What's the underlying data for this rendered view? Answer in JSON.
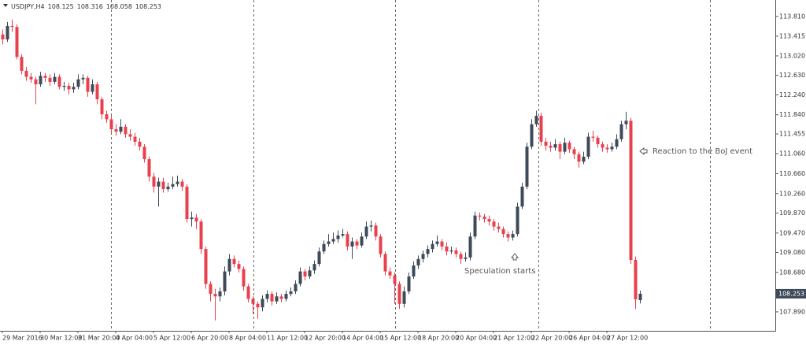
{
  "chart_data": {
    "type": "candlestick",
    "title": "USDJPY,H4",
    "annotations": [
      "Speculation starts",
      "Reaction to the BoJ event"
    ],
    "up_color": "#3e4a59",
    "down_color": "#e8414d",
    "ylim": [
      107.51,
      114.14
    ],
    "yticks": [
      {
        "value": 113.81,
        "label": "113.810"
      },
      113.415,
      {
        "value": 113.02,
        "label": "113.020"
      },
      {
        "value": 112.63,
        "label": "112.630"
      },
      {
        "value": 112.24,
        "label": "112.240"
      },
      {
        "value": 111.84,
        "label": "111.840"
      },
      111.455,
      {
        "value": 111.06,
        "label": "111.060"
      },
      {
        "value": 110.66,
        "label": "110.660"
      },
      {
        "value": 110.26,
        "label": "110.260"
      },
      {
        "value": 109.87,
        "label": "109.870"
      },
      {
        "value": 109.47,
        "label": "109.470"
      },
      {
        "value": 109.08,
        "label": "109.080"
      },
      {
        "value": 108.68,
        "label": "108.680"
      },
      {
        "value": 107.89,
        "label": "107.890"
      }
    ],
    "categories": [
      "29 Mar 2016",
      null,
      null,
      null,
      null,
      null,
      null,
      null,
      "30 Mar 12:00",
      null,
      null,
      null,
      null,
      null,
      null,
      null,
      "31 Mar 20:00",
      null,
      null,
      null,
      null,
      null,
      null,
      null,
      "4 Apr 04:00",
      null,
      null,
      null,
      null,
      null,
      null,
      null,
      "5 Apr 12:00",
      null,
      null,
      null,
      null,
      null,
      null,
      null,
      "6 Apr 20:00",
      null,
      null,
      null,
      null,
      null,
      null,
      null,
      "8 Apr 04:00",
      null,
      null,
      null,
      null,
      null,
      null,
      null,
      "11 Apr 12:00",
      null,
      null,
      null,
      null,
      null,
      null,
      null,
      "12 Apr 20:00",
      null,
      null,
      null,
      null,
      null,
      null,
      null,
      "14 Apr 04:00",
      null,
      null,
      null,
      null,
      null,
      null,
      null,
      "15 Apr 12:00",
      null,
      null,
      null,
      null,
      null,
      null,
      null,
      "18 Apr 20:00",
      null,
      null,
      null,
      null,
      null,
      null,
      null,
      "20 Apr 04:00",
      null,
      null,
      null,
      null,
      null,
      null,
      null,
      "21 Apr 12:00",
      null,
      null,
      null,
      null,
      null,
      null,
      null,
      "22 Apr 20:00",
      null,
      null,
      null,
      null,
      null,
      null,
      null,
      "26 Apr 04:00",
      null,
      null,
      null,
      null,
      null,
      null,
      null,
      "27 Apr 12:00",
      null,
      null,
      null,
      null,
      null,
      null,
      null
    ],
    "ohlc": [
      [
        113.45,
        113.55,
        113.25,
        113.35
      ],
      [
        113.35,
        113.7,
        113.3,
        113.62
      ],
      [
        113.62,
        113.75,
        113.5,
        113.6
      ],
      [
        113.6,
        113.65,
        112.95,
        113.0
      ],
      [
        113.0,
        113.05,
        112.65,
        112.72
      ],
      [
        112.72,
        112.8,
        112.52,
        112.6
      ],
      [
        112.6,
        112.68,
        112.48,
        112.55
      ],
      [
        112.55,
        112.6,
        112.05,
        112.45
      ],
      [
        112.45,
        112.7,
        112.4,
        112.62
      ],
      [
        112.62,
        112.68,
        112.5,
        112.58
      ],
      [
        112.58,
        112.65,
        112.42,
        112.5
      ],
      [
        112.5,
        112.68,
        112.45,
        112.6
      ],
      [
        112.6,
        112.65,
        112.35,
        112.4
      ],
      [
        112.4,
        112.5,
        112.32,
        112.42
      ],
      [
        112.42,
        112.48,
        112.25,
        112.35
      ],
      [
        112.35,
        112.48,
        112.28,
        112.4
      ],
      [
        112.4,
        112.65,
        112.35,
        112.55
      ],
      [
        112.55,
        112.65,
        112.45,
        112.58
      ],
      [
        112.58,
        112.62,
        112.2,
        112.3
      ],
      [
        112.3,
        112.55,
        112.25,
        112.45
      ],
      [
        112.45,
        112.5,
        112.05,
        112.15
      ],
      [
        112.15,
        112.2,
        111.75,
        111.85
      ],
      [
        111.85,
        111.92,
        111.68,
        111.75
      ],
      [
        111.75,
        111.82,
        111.48,
        111.55
      ],
      [
        111.55,
        111.65,
        111.42,
        111.5
      ],
      [
        111.5,
        111.75,
        111.45,
        111.6
      ],
      [
        111.6,
        111.65,
        111.38,
        111.45
      ],
      [
        111.45,
        111.55,
        111.32,
        111.4
      ],
      [
        111.4,
        111.48,
        111.22,
        111.3
      ],
      [
        111.3,
        111.38,
        111.12,
        111.2
      ],
      [
        111.2,
        111.25,
        110.88,
        110.95
      ],
      [
        110.95,
        111.0,
        110.5,
        110.6
      ],
      [
        110.6,
        110.68,
        110.28,
        110.4
      ],
      [
        110.4,
        110.58,
        110.0,
        110.5
      ],
      [
        110.5,
        110.58,
        110.28,
        110.35
      ],
      [
        110.35,
        110.48,
        110.3,
        110.4
      ],
      [
        110.4,
        110.6,
        110.35,
        110.45
      ],
      [
        110.45,
        110.62,
        110.4,
        110.5
      ],
      [
        110.5,
        110.55,
        110.32,
        110.4
      ],
      [
        110.4,
        110.45,
        109.68,
        109.75
      ],
      [
        109.75,
        109.9,
        109.6,
        109.78
      ],
      [
        109.78,
        109.85,
        109.55,
        109.7
      ],
      [
        109.7,
        109.75,
        109.05,
        109.15
      ],
      [
        109.15,
        109.2,
        108.35,
        108.45
      ],
      [
        108.45,
        108.5,
        108.1,
        108.25
      ],
      [
        108.25,
        108.35,
        107.72,
        108.2
      ],
      [
        108.2,
        108.38,
        108.1,
        108.3
      ],
      [
        108.3,
        108.8,
        108.22,
        108.7
      ],
      [
        108.7,
        109.05,
        108.62,
        108.95
      ],
      [
        108.95,
        109.02,
        108.78,
        108.85
      ],
      [
        108.85,
        108.92,
        108.68,
        108.75
      ],
      [
        108.75,
        108.8,
        108.32,
        108.4
      ],
      [
        108.4,
        108.45,
        108.08,
        108.15
      ],
      [
        108.15,
        108.2,
        107.85,
        108.05
      ],
      [
        108.05,
        108.1,
        107.75,
        107.98
      ],
      [
        107.98,
        108.22,
        107.9,
        108.15
      ],
      [
        108.15,
        108.32,
        108.08,
        108.25
      ],
      [
        108.25,
        108.3,
        108.02,
        108.1
      ],
      [
        108.1,
        108.28,
        108.05,
        108.2
      ],
      [
        108.2,
        108.25,
        108.08,
        108.15
      ],
      [
        108.15,
        108.32,
        108.1,
        108.25
      ],
      [
        108.25,
        108.38,
        108.2,
        108.3
      ],
      [
        108.3,
        108.52,
        108.25,
        108.45
      ],
      [
        108.45,
        108.78,
        108.4,
        108.7
      ],
      [
        108.7,
        108.75,
        108.52,
        108.6
      ],
      [
        108.6,
        108.8,
        108.55,
        108.72
      ],
      [
        108.72,
        108.92,
        108.65,
        108.85
      ],
      [
        108.85,
        109.18,
        108.8,
        109.1
      ],
      [
        109.1,
        109.32,
        109.05,
        109.25
      ],
      [
        109.25,
        109.45,
        109.2,
        109.3
      ],
      [
        109.3,
        109.48,
        109.25,
        109.35
      ],
      [
        109.35,
        109.52,
        109.28,
        109.42
      ],
      [
        109.42,
        109.55,
        109.38,
        109.45
      ],
      [
        109.45,
        109.5,
        109.12,
        109.2
      ],
      [
        109.2,
        109.38,
        108.95,
        109.3
      ],
      [
        109.3,
        109.35,
        109.15,
        109.22
      ],
      [
        109.22,
        109.48,
        109.18,
        109.4
      ],
      [
        109.4,
        109.7,
        109.35,
        109.6
      ],
      [
        109.6,
        109.72,
        109.5,
        109.62
      ],
      [
        109.62,
        109.68,
        109.32,
        109.4
      ],
      [
        109.4,
        109.45,
        108.98,
        109.05
      ],
      [
        109.05,
        109.1,
        108.62,
        108.7
      ],
      [
        108.7,
        108.78,
        108.55,
        108.62
      ],
      [
        108.62,
        108.68,
        108.05,
        108.45
      ],
      [
        108.45,
        108.5,
        107.95,
        108.05
      ],
      [
        108.05,
        108.4,
        107.98,
        108.3
      ],
      [
        108.3,
        108.68,
        108.25,
        108.6
      ],
      [
        108.6,
        108.9,
        108.55,
        108.82
      ],
      [
        108.82,
        109.02,
        108.75,
        108.95
      ],
      [
        108.95,
        109.12,
        108.88,
        109.05
      ],
      [
        109.05,
        109.22,
        108.98,
        109.15
      ],
      [
        109.15,
        109.32,
        109.08,
        109.25
      ],
      [
        109.25,
        109.42,
        109.2,
        109.3
      ],
      [
        109.3,
        109.35,
        109.12,
        109.2
      ],
      [
        109.2,
        109.28,
        109.02,
        109.1
      ],
      [
        109.1,
        109.2,
        109.05,
        109.12
      ],
      [
        109.12,
        109.18,
        108.98,
        109.05
      ],
      [
        109.05,
        109.1,
        108.85,
        108.95
      ],
      [
        108.95,
        109.08,
        108.9,
        108.98
      ],
      [
        108.98,
        109.48,
        108.92,
        109.4
      ],
      [
        109.4,
        109.9,
        109.35,
        109.82
      ],
      [
        109.82,
        109.88,
        109.72,
        109.8
      ],
      [
        109.8,
        109.85,
        109.68,
        109.75
      ],
      [
        109.75,
        109.82,
        109.62,
        109.7
      ],
      [
        109.7,
        109.75,
        109.52,
        109.6
      ],
      [
        109.6,
        109.68,
        109.48,
        109.55
      ],
      [
        109.55,
        109.6,
        109.38,
        109.45
      ],
      [
        109.45,
        109.5,
        109.3,
        109.38
      ],
      [
        109.38,
        109.52,
        109.32,
        109.45
      ],
      [
        109.45,
        110.08,
        109.4,
        110.0
      ],
      [
        110.0,
        110.48,
        109.95,
        110.4
      ],
      [
        110.4,
        111.28,
        110.35,
        111.2
      ],
      [
        111.2,
        111.75,
        111.15,
        111.65
      ],
      [
        111.65,
        111.92,
        111.6,
        111.82
      ],
      [
        111.82,
        111.88,
        111.22,
        111.3
      ],
      [
        111.3,
        111.38,
        111.12,
        111.22
      ],
      [
        111.22,
        111.3,
        111.1,
        111.18
      ],
      [
        111.18,
        111.35,
        111.12,
        111.25
      ],
      [
        111.25,
        111.3,
        110.95,
        111.1
      ],
      [
        111.1,
        111.38,
        111.05,
        111.28
      ],
      [
        111.28,
        111.32,
        111.08,
        111.15
      ],
      [
        111.15,
        111.2,
        110.95,
        111.05
      ],
      [
        111.05,
        111.1,
        110.78,
        110.9
      ],
      [
        110.9,
        111.1,
        110.85,
        111.0
      ],
      [
        111.0,
        111.48,
        110.95,
        111.4
      ],
      [
        111.4,
        111.52,
        111.3,
        111.38
      ],
      [
        111.38,
        111.42,
        111.18,
        111.25
      ],
      [
        111.25,
        111.3,
        111.1,
        111.18
      ],
      [
        111.18,
        111.25,
        111.08,
        111.15
      ],
      [
        111.15,
        111.28,
        111.1,
        111.2
      ],
      [
        111.2,
        111.45,
        111.15,
        111.35
      ],
      [
        111.35,
        111.72,
        111.3,
        111.65
      ],
      [
        111.65,
        111.9,
        111.55,
        111.72
      ],
      [
        111.72,
        111.78,
        108.85,
        108.93
      ],
      [
        108.93,
        109.0,
        107.95,
        108.14
      ],
      [
        108.125,
        108.316,
        108.058,
        108.253
      ]
    ]
  }
}
